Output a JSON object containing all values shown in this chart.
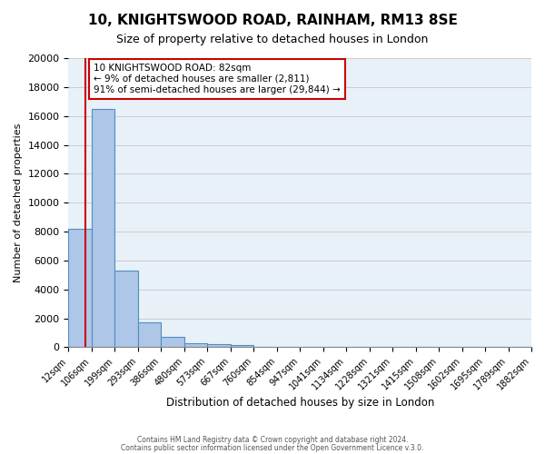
{
  "title": "10, KNIGHTSWOOD ROAD, RAINHAM, RM13 8SE",
  "subtitle": "Size of property relative to detached houses in London",
  "xlabel": "Distribution of detached houses by size in London",
  "ylabel": "Number of detached properties",
  "bin_labels": [
    "12sqm",
    "106sqm",
    "199sqm",
    "293sqm",
    "386sqm",
    "480sqm",
    "573sqm",
    "667sqm",
    "760sqm",
    "854sqm",
    "947sqm",
    "1041sqm",
    "1134sqm",
    "1228sqm",
    "1321sqm",
    "1415sqm",
    "1508sqm",
    "1602sqm",
    "1695sqm",
    "1789sqm",
    "1882sqm"
  ],
  "bar_values": [
    8200,
    16500,
    5300,
    1750,
    700,
    300,
    200,
    150,
    0,
    0,
    0,
    0,
    0,
    0,
    0,
    0,
    0,
    0,
    0,
    0
  ],
  "bar_color": "#aec6e8",
  "bar_edge_color": "#4f8fbf",
  "grid_color": "#cccccc",
  "bg_color": "#e8f0f8",
  "ylim": [
    0,
    20000
  ],
  "yticks": [
    0,
    2000,
    4000,
    6000,
    8000,
    10000,
    12000,
    14000,
    16000,
    18000,
    20000
  ],
  "property_size": 82,
  "pct_smaller": 9,
  "n_smaller": 2811,
  "pct_larger": 91,
  "n_larger": 29844,
  "vline_color": "#cc0000",
  "annotation_box_color": "#ffffff",
  "annotation_box_edge": "#cc0000",
  "footer_line1": "Contains HM Land Registry data © Crown copyright and database right 2024.",
  "footer_line2": "Contains public sector information licensed under the Open Government Licence v.3.0."
}
